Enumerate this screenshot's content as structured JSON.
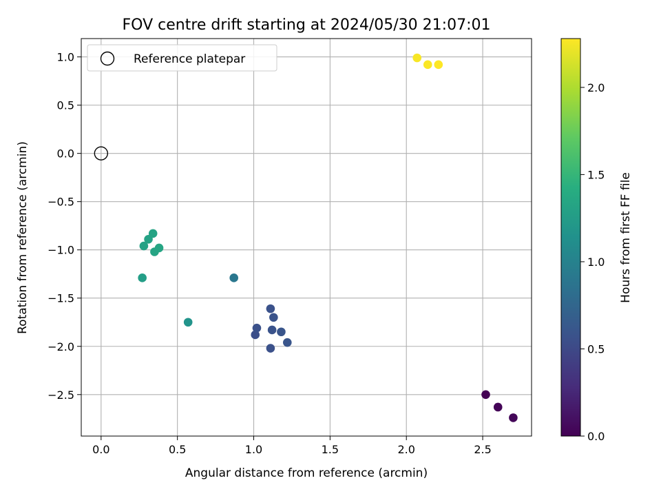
{
  "chart_data": {
    "type": "scatter",
    "title": "FOV centre drift starting at 2024/05/30 21:07:01",
    "xlabel": "Angular distance from reference (arcmin)",
    "ylabel": "Rotation from reference (arcmin)",
    "xlim": [
      -0.13,
      2.82
    ],
    "ylim": [
      -2.93,
      1.19
    ],
    "xticks": [
      0.0,
      0.5,
      1.0,
      1.5,
      2.0,
      2.5
    ],
    "xtick_labels": [
      "0.0",
      "0.5",
      "1.0",
      "1.5",
      "2.0",
      "2.5"
    ],
    "yticks": [
      1.0,
      0.5,
      0.0,
      -0.5,
      -1.0,
      -1.5,
      -2.0,
      -2.5
    ],
    "ytick_labels": [
      "1.0",
      "0.5",
      "0.0",
      "−0.5",
      "−1.0",
      "−1.5",
      "−2.0",
      "−2.5"
    ],
    "grid": true,
    "legend": {
      "placement": "top-left",
      "entries": [
        "Reference platepar"
      ]
    },
    "reference_point": {
      "x": 0.0,
      "y": 0.0
    },
    "colorbar": {
      "label": "Hours from first FF file",
      "colormap": "viridis",
      "range": [
        0.0,
        2.28
      ],
      "ticks": [
        0.0,
        0.5,
        1.0,
        1.5,
        2.0
      ],
      "tick_labels": [
        "0.0",
        "0.5",
        "1.0",
        "1.5",
        "2.0"
      ]
    },
    "points": [
      {
        "x": 2.52,
        "y": -2.5,
        "hours": 0.0
      },
      {
        "x": 2.6,
        "y": -2.63,
        "hours": 0.02
      },
      {
        "x": 2.7,
        "y": -2.74,
        "hours": 0.04
      },
      {
        "x": 1.01,
        "y": -1.88,
        "hours": 0.55
      },
      {
        "x": 1.02,
        "y": -1.81,
        "hours": 0.56
      },
      {
        "x": 1.11,
        "y": -2.02,
        "hours": 0.56
      },
      {
        "x": 1.11,
        "y": -1.61,
        "hours": 0.57
      },
      {
        "x": 1.12,
        "y": -1.83,
        "hours": 0.58
      },
      {
        "x": 1.13,
        "y": -1.7,
        "hours": 0.58
      },
      {
        "x": 1.18,
        "y": -1.85,
        "hours": 0.6
      },
      {
        "x": 1.22,
        "y": -1.96,
        "hours": 0.6
      },
      {
        "x": 0.87,
        "y": -1.29,
        "hours": 0.9
      },
      {
        "x": 0.57,
        "y": -1.75,
        "hours": 1.17
      },
      {
        "x": 0.27,
        "y": -1.29,
        "hours": 1.27
      },
      {
        "x": 0.28,
        "y": -0.96,
        "hours": 1.3
      },
      {
        "x": 0.31,
        "y": -0.89,
        "hours": 1.31
      },
      {
        "x": 0.34,
        "y": -0.83,
        "hours": 1.32
      },
      {
        "x": 0.35,
        "y": -1.02,
        "hours": 1.33
      },
      {
        "x": 0.38,
        "y": -0.98,
        "hours": 1.34
      },
      {
        "x": 2.07,
        "y": 0.99,
        "hours": 2.26
      },
      {
        "x": 2.14,
        "y": 0.92,
        "hours": 2.27
      },
      {
        "x": 2.21,
        "y": 0.92,
        "hours": 2.28
      }
    ]
  }
}
